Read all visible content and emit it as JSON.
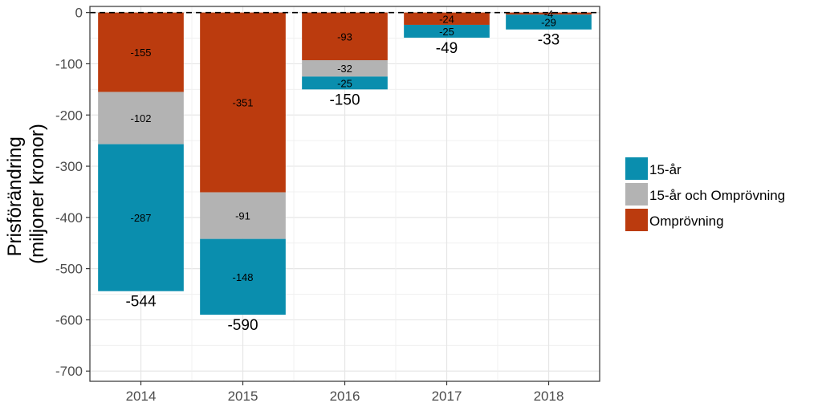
{
  "chart_data": {
    "type": "bar",
    "stacked": true,
    "categories": [
      "2014",
      "2015",
      "2016",
      "2017",
      "2018"
    ],
    "series": [
      {
        "name": "Omprövning",
        "color": "#BB3B0E",
        "values": [
          -155,
          -351,
          -93,
          -24,
          -4
        ]
      },
      {
        "name": "15-år och Omprövning",
        "color": "#B3B3B3",
        "values": [
          -102,
          -91,
          -32,
          0,
          0
        ]
      },
      {
        "name": "15-år",
        "color": "#0A8EAE",
        "values": [
          -287,
          -148,
          -25,
          -25,
          -29
        ]
      }
    ],
    "segment_labels": {
      "Omprövning": [
        "-155",
        "-351",
        "-93",
        "-24",
        "-4"
      ],
      "15-år och Omprövning": [
        "-102",
        "-91",
        "-32",
        "",
        ""
      ],
      "15-år": [
        "-287",
        "-148",
        "-25",
        "-25",
        "-29"
      ]
    },
    "totals": [
      -544,
      -590,
      -150,
      -49,
      -33
    ],
    "total_labels": [
      "-544",
      "-590",
      "-150",
      "-49",
      "-33"
    ],
    "legend": [
      "15-år",
      "15-år och Omprövning",
      "Omprövning"
    ],
    "legend_position": "right",
    "ylabel_lines": [
      "Prisförändring",
      "(miljoner kronor)"
    ],
    "xlabel": "",
    "ylim": [
      -720,
      12
    ],
    "yticks": [
      0,
      -100,
      -200,
      -300,
      -400,
      -500,
      -600,
      -700
    ],
    "ytick_labels": [
      "0",
      "-100",
      "-200",
      "-300",
      "-400",
      "-500",
      "-600",
      "-700"
    ],
    "reference_line": 0,
    "grid": true
  }
}
